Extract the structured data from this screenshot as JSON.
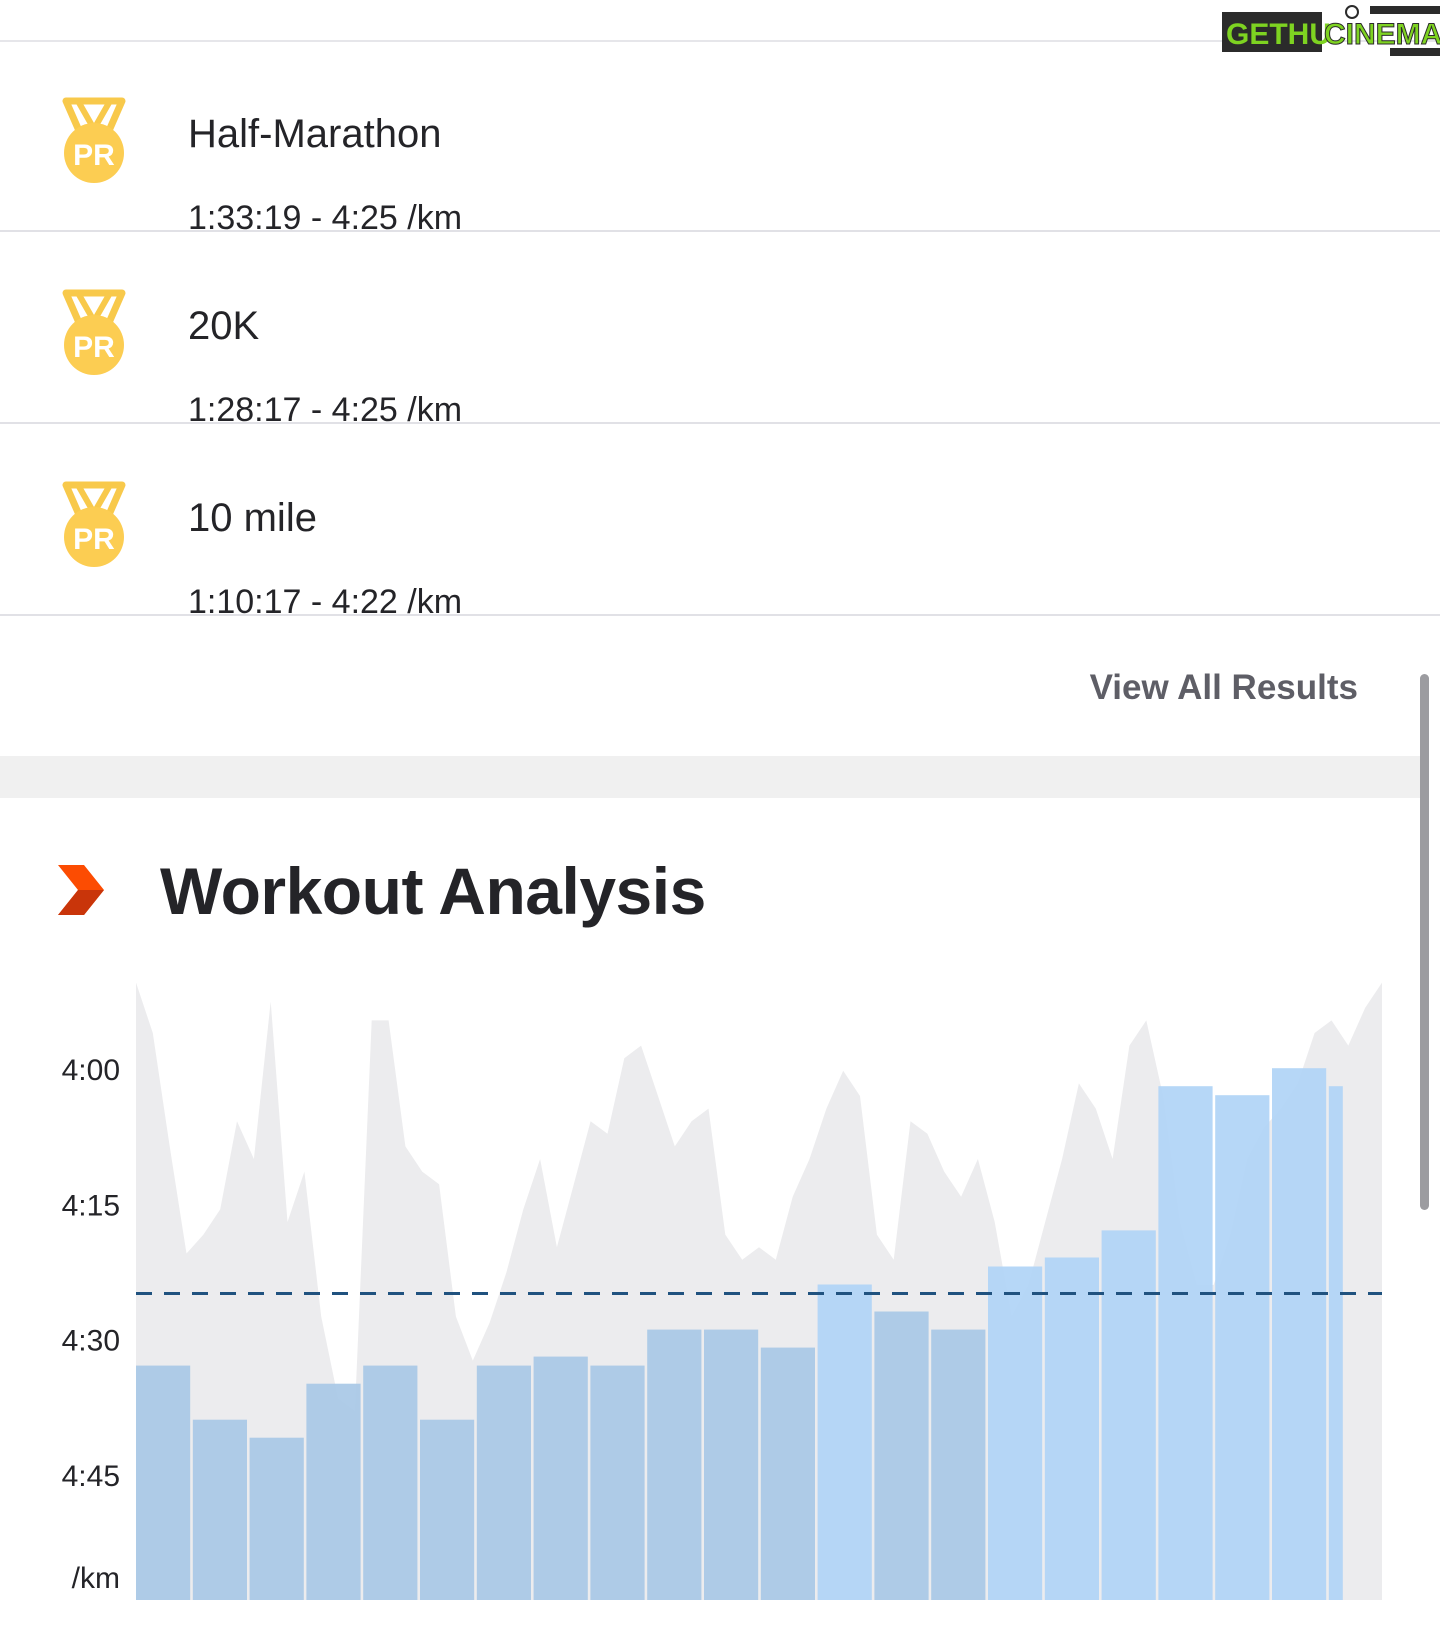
{
  "watermark": {
    "part1": "GETHU",
    "part2": "CINEMA"
  },
  "personal_records": [
    {
      "badge": "PR",
      "icon": "pr-medal-icon",
      "title": "Half-Marathon",
      "detail": "1:33:19 - 4:25 /km"
    },
    {
      "badge": "PR",
      "icon": "pr-medal-icon",
      "title": "20K",
      "detail": "1:28:17 - 4:25 /km"
    },
    {
      "badge": "PR",
      "icon": "pr-medal-icon",
      "title": "10 mile",
      "detail": "1:10:17 - 4:22 /km"
    }
  ],
  "view_all_label": "View All Results",
  "workout_analysis": {
    "title": "Workout Analysis",
    "icon": "chevron-right-icon",
    "accent_color": "#fc4c02"
  },
  "chart_data": {
    "type": "bar",
    "ylabel": "/km",
    "y_axis": "pace in seconds per km, inverted (faster is higher)",
    "yticks": [
      {
        "label": "4:00",
        "value": 240
      },
      {
        "label": "4:15",
        "value": 255
      },
      {
        "label": "4:30",
        "value": 270
      },
      {
        "label": "4:45",
        "value": 285
      }
    ],
    "ylim": [
      228,
      299
    ],
    "average_pace": 265,
    "lap_pace_seconds": [
      273,
      279,
      281,
      275,
      273,
      279,
      273,
      272,
      273,
      269,
      269,
      271,
      264,
      267,
      269,
      262,
      261,
      258,
      242,
      243,
      240,
      242
    ],
    "bar_color": "#a8c8e6",
    "bar_highlight_color": "#b0d4f6",
    "avg_line_color": "#20527f",
    "background_area_color": "#ececee"
  }
}
